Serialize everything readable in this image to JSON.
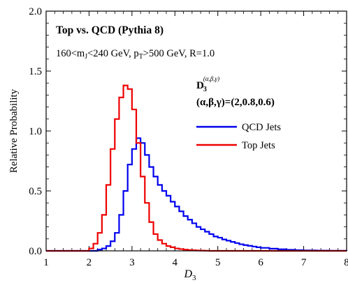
{
  "chart_data": {
    "type": "line",
    "title": "Top vs. QCD (Pythia 8)",
    "subtitle": "160<m_J<240 GeV, p_T>500 GeV, R=1.0",
    "subtitle_parts": {
      "a": "160<m",
      "a_sub": "J",
      "b": "<240 GeV, p",
      "b_sub": "T",
      "c": ">500 GeV, R=1.0"
    },
    "observable_label": {
      "main": "D",
      "sub": "3",
      "sup": "(α,β,γ)"
    },
    "params_label": "(α,β,γ)=(2,0.8,0.6)",
    "xlabel": {
      "main": "D",
      "sub": "3"
    },
    "ylabel": "Relative Probability",
    "xlim": [
      1,
      8
    ],
    "ylim": [
      0,
      2.0
    ],
    "xticks": [
      "1",
      "2",
      "3",
      "4",
      "5",
      "6",
      "7",
      "8"
    ],
    "yticks": [
      "0.0",
      "0.5",
      "1.0",
      "1.5",
      "2.0"
    ],
    "legend_position": "right",
    "bin_width": 0.1,
    "x": [
      2.0,
      2.1,
      2.2,
      2.3,
      2.4,
      2.5,
      2.6,
      2.7,
      2.8,
      2.9,
      3.0,
      3.1,
      3.2,
      3.3,
      3.4,
      3.5,
      3.6,
      3.7,
      3.8,
      3.9,
      4.0,
      4.1,
      4.2,
      4.3,
      4.4,
      4.5,
      4.6,
      4.7,
      4.8,
      4.9,
      5.0,
      5.1,
      5.2,
      5.3,
      5.4,
      5.5,
      5.6,
      5.7,
      5.8,
      5.9,
      6.0,
      6.2,
      6.4,
      6.6,
      6.8,
      7.0,
      7.3,
      7.6,
      8.0
    ],
    "series": [
      {
        "name": "QCD Jets",
        "color": "#0000ee",
        "values": [
          0.0,
          0.0,
          0.01,
          0.02,
          0.04,
          0.08,
          0.15,
          0.3,
          0.5,
          0.72,
          0.85,
          0.94,
          0.9,
          0.8,
          0.7,
          0.62,
          0.55,
          0.5,
          0.46,
          0.41,
          0.37,
          0.33,
          0.29,
          0.26,
          0.23,
          0.2,
          0.18,
          0.16,
          0.14,
          0.12,
          0.11,
          0.095,
          0.085,
          0.075,
          0.065,
          0.055,
          0.048,
          0.042,
          0.036,
          0.03,
          0.025,
          0.018,
          0.013,
          0.009,
          0.006,
          0.004,
          0.002,
          0.001,
          0.0
        ]
      },
      {
        "name": "Top Jets",
        "color": "#ee0000",
        "values": [
          0.02,
          0.06,
          0.15,
          0.3,
          0.55,
          0.85,
          1.1,
          1.28,
          1.38,
          1.35,
          1.18,
          0.9,
          0.62,
          0.4,
          0.24,
          0.14,
          0.09,
          0.06,
          0.04,
          0.03,
          0.02,
          0.015,
          0.01,
          0.007,
          0.005,
          0.003,
          0.002,
          0.001,
          0.0,
          0.0,
          0.0,
          0.0,
          0.0,
          0.0,
          0.0,
          0.0,
          0.0,
          0.0,
          0.0,
          0.0,
          0.0,
          0.0,
          0.0,
          0.0,
          0.0,
          0.0,
          0.0,
          0.0,
          0.0
        ]
      }
    ]
  }
}
